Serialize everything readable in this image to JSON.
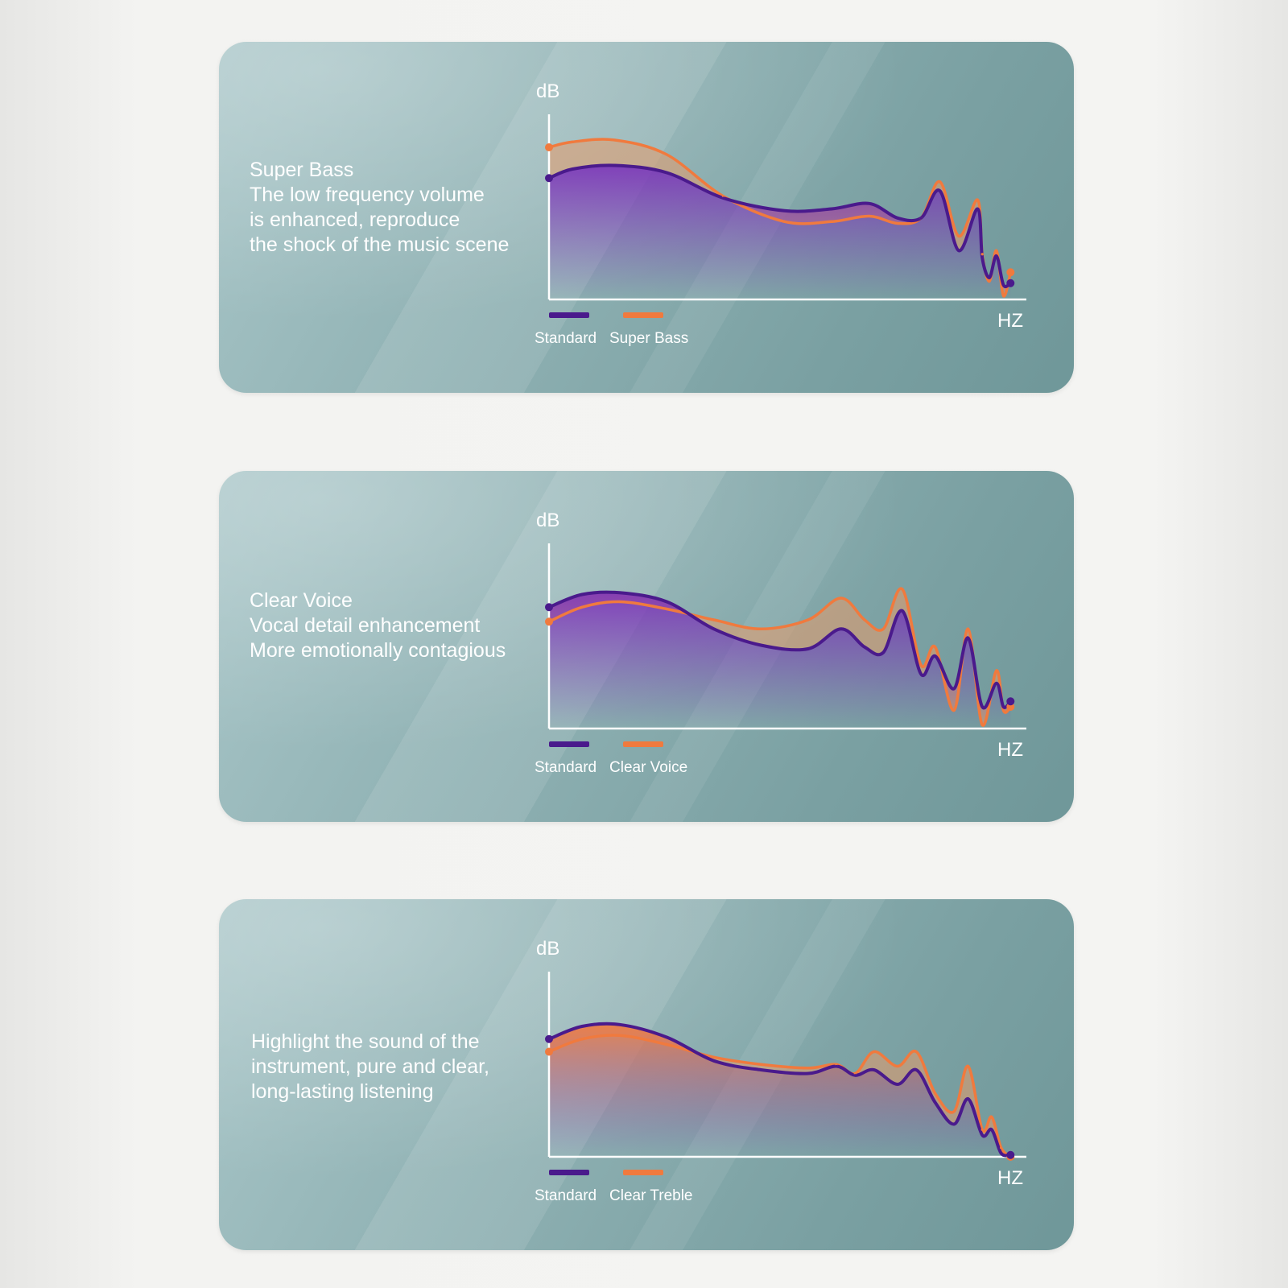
{
  "colors": {
    "standard": "#4a1a8c",
    "variant": "#f07a3e"
  },
  "panels": [
    {
      "description": [
        "Super Bass",
        "The low frequency volume",
        "is enhanced, reproduce",
        "the shock of the music scene"
      ],
      "ylabel": "dB",
      "xlabel": "HZ",
      "legend": [
        "Standard",
        "Super Bass"
      ]
    },
    {
      "description": [
        "Clear Voice",
        "Vocal detail enhancement",
        "More emotionally contagious"
      ],
      "ylabel": "dB",
      "xlabel": "HZ",
      "legend": [
        "Standard",
        "Clear Voice"
      ]
    },
    {
      "description": [
        "Highlight the sound of the",
        "instrument, pure and clear,",
        "long-lasting listening"
      ],
      "ylabel": "dB",
      "xlabel": "HZ",
      "legend": [
        "Standard",
        "Clear Treble"
      ]
    }
  ],
  "chart_data": [
    {
      "type": "line",
      "x": [
        0,
        0.05,
        0.14,
        0.25,
        0.37,
        0.5,
        0.6,
        0.68,
        0.74,
        0.79,
        0.83,
        0.87,
        0.91,
        0.92,
        0.935,
        0.95,
        0.965,
        0.98
      ],
      "series": [
        {
          "name": "Standard",
          "values": [
            0.67,
            0.72,
            0.74,
            0.7,
            0.56,
            0.49,
            0.5,
            0.53,
            0.45,
            0.45,
            0.6,
            0.27,
            0.5,
            0.23,
            0.12,
            0.24,
            0.08,
            0.09
          ]
        },
        {
          "name": "Super Bass",
          "values": [
            0.84,
            0.87,
            0.88,
            0.8,
            0.57,
            0.43,
            0.43,
            0.46,
            0.42,
            0.45,
            0.65,
            0.35,
            0.55,
            0.25,
            0.1,
            0.27,
            0.02,
            0.15
          ]
        }
      ],
      "ylim": [
        0,
        1
      ],
      "xlim": [
        0,
        1
      ]
    },
    {
      "type": "line",
      "x": [
        0,
        0.07,
        0.15,
        0.25,
        0.35,
        0.45,
        0.55,
        0.62,
        0.67,
        0.71,
        0.75,
        0.79,
        0.82,
        0.86,
        0.89,
        0.92,
        0.95,
        0.965,
        0.98
      ],
      "series": [
        {
          "name": "Standard",
          "values": [
            0.67,
            0.74,
            0.75,
            0.7,
            0.55,
            0.46,
            0.44,
            0.55,
            0.45,
            0.42,
            0.65,
            0.3,
            0.4,
            0.22,
            0.5,
            0.12,
            0.25,
            0.12,
            0.15
          ]
        },
        {
          "name": "Clear Voice",
          "values": [
            0.59,
            0.67,
            0.7,
            0.66,
            0.6,
            0.55,
            0.6,
            0.72,
            0.6,
            0.55,
            0.77,
            0.35,
            0.45,
            0.1,
            0.55,
            0.02,
            0.32,
            0.1,
            0.12
          ]
        }
      ],
      "ylim": [
        0,
        1
      ],
      "xlim": [
        0,
        1
      ]
    },
    {
      "type": "line",
      "x": [
        0,
        0.07,
        0.15,
        0.25,
        0.35,
        0.45,
        0.55,
        0.61,
        0.65,
        0.69,
        0.74,
        0.78,
        0.82,
        0.86,
        0.89,
        0.92,
        0.94,
        0.96,
        0.98
      ],
      "series": [
        {
          "name": "Standard",
          "values": [
            0.65,
            0.72,
            0.73,
            0.66,
            0.53,
            0.48,
            0.46,
            0.5,
            0.45,
            0.48,
            0.4,
            0.48,
            0.3,
            0.18,
            0.32,
            0.12,
            0.15,
            0.02,
            0.01
          ]
        },
        {
          "name": "Clear Treble",
          "values": [
            0.58,
            0.65,
            0.67,
            0.62,
            0.55,
            0.51,
            0.49,
            0.51,
            0.46,
            0.58,
            0.5,
            0.58,
            0.35,
            0.25,
            0.5,
            0.15,
            0.22,
            0.05,
            0.0
          ]
        }
      ],
      "ylim": [
        0,
        1
      ],
      "xlim": [
        0,
        1
      ]
    }
  ]
}
